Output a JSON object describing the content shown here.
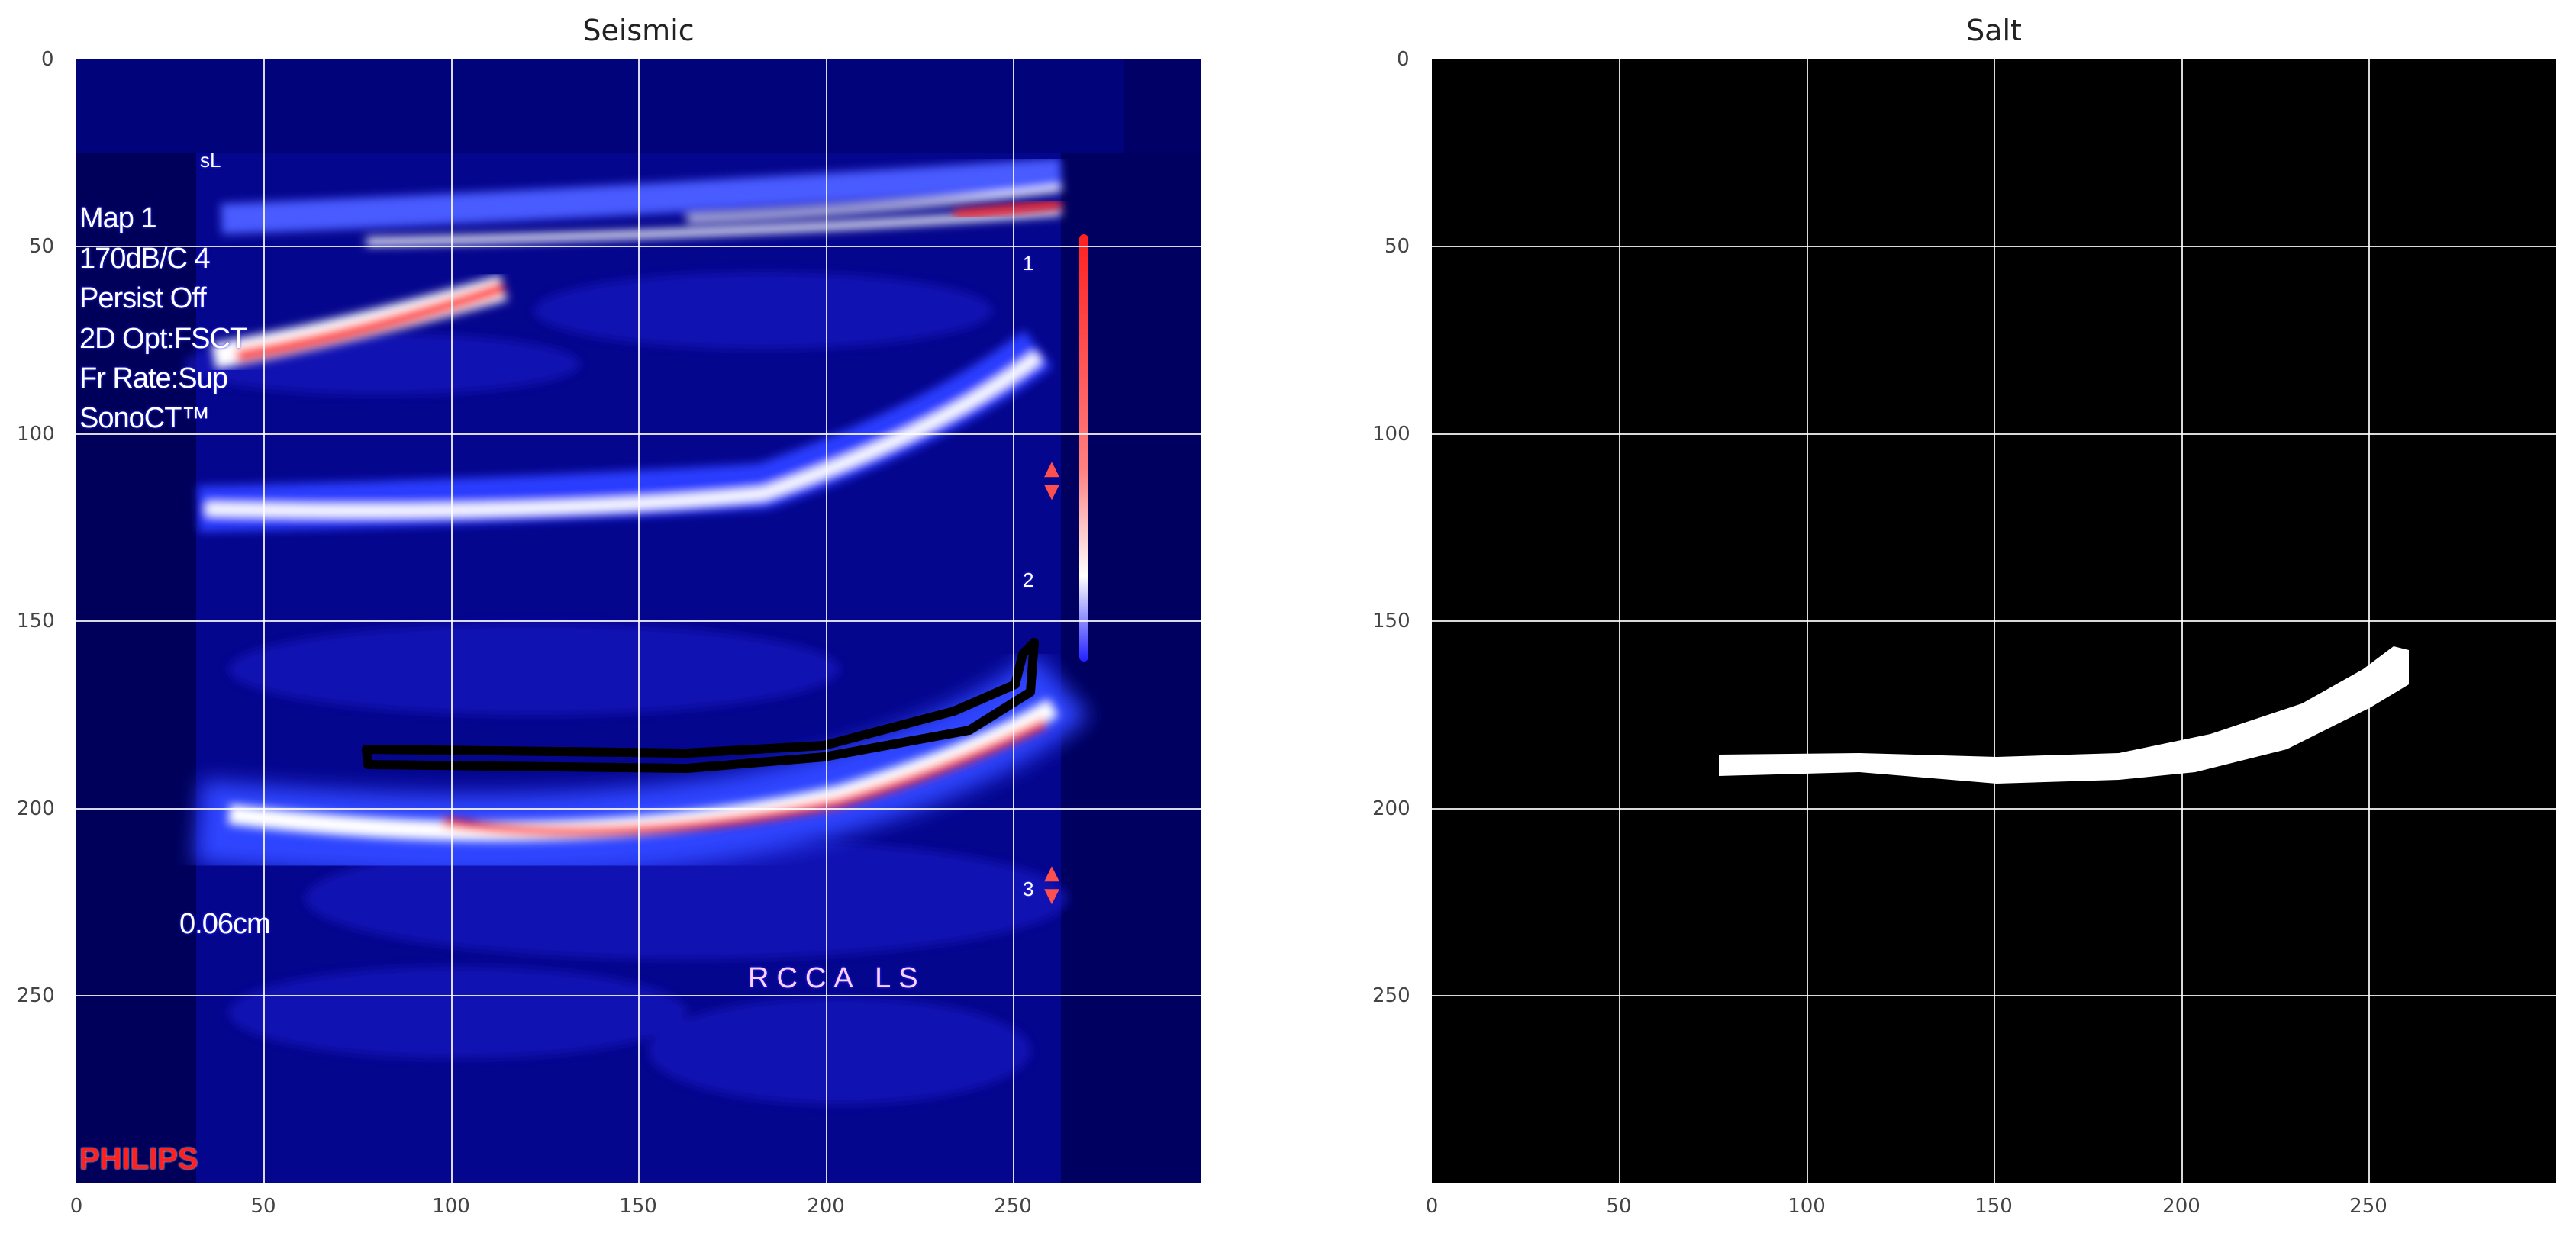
{
  "figure": {
    "panels": [
      {
        "title": "Seismic",
        "x_ticks": [
          "0",
          "50",
          "100",
          "150",
          "200",
          "250"
        ],
        "y_ticks": [
          "0",
          "50",
          "100",
          "150",
          "200",
          "250"
        ],
        "overlay": {
          "settings_lines": [
            "Map 1",
            "170dB/C 4",
            "Persist Off",
            "2D Opt:FSCT",
            "Fr Rate:Sup",
            "SonoCT™"
          ],
          "scale_label": "0.06cm",
          "view_label": "RCCA LS",
          "top_marker": "sL",
          "depth_markers": [
            "1",
            "2",
            "3"
          ],
          "logo": "PHILIPS"
        }
      },
      {
        "title": "Salt",
        "x_ticks": [
          "0",
          "50",
          "100",
          "150",
          "200",
          "250"
        ],
        "y_ticks": [
          "0",
          "50",
          "100",
          "150",
          "200",
          "250"
        ]
      }
    ],
    "axis_range": {
      "x": [
        0,
        300
      ],
      "y": [
        0,
        300
      ]
    },
    "grid": true,
    "colors": {
      "seismic_background": "#000066",
      "seismic_bright": "#ffffff",
      "seismic_hot": "#ff2020",
      "mask_background": "#000000",
      "mask_foreground": "#ffffff",
      "contour": "#000000"
    }
  }
}
